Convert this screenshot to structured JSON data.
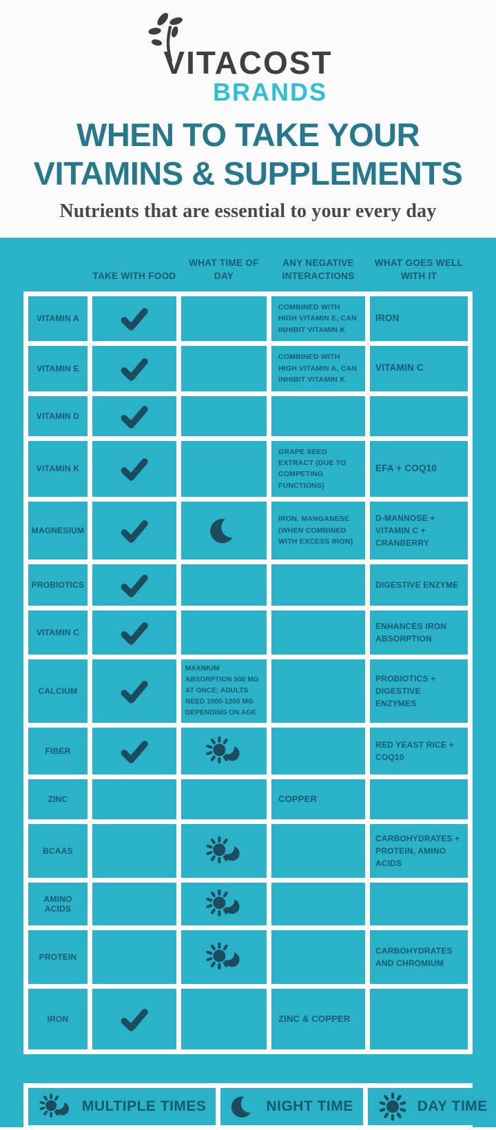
{
  "brand": {
    "name": "VITACOST",
    "subname": "BRANDS"
  },
  "header": {
    "title_line1": "WHEN TO TAKE YOUR",
    "title_line2": "VITAMINS & SUPPLEMENTS",
    "subtitle": "Nutrients that are essential to your every day"
  },
  "colors": {
    "cyan_background": "#2ab3c8",
    "grid_white": "#ffffff",
    "dark_teal_text": "#155a70",
    "icon_teal": "#1d4c5f",
    "title_teal": "#26798d",
    "brand_cyan": "#2cc0d5",
    "logo_gray": "#3f3f3f"
  },
  "table": {
    "column_headers": [
      "TAKE WITH FOOD",
      "WHAT TIME OF DAY",
      "ANY NEGATIVE INTERACTIONS",
      "WHAT GOES WELL WITH IT"
    ],
    "rows": [
      {
        "name": "VITAMIN A",
        "take_with_food": "check",
        "time_of_day": "",
        "time_note": "",
        "negative_interactions": "COMBINED WITH HIGH VITAMIN E, CAN INHIBIT VITAMIN K",
        "goes_well_with": "IRON"
      },
      {
        "name": "VITAMIN E",
        "take_with_food": "check",
        "time_of_day": "",
        "time_note": "",
        "negative_interactions": "COMBINED WITH HIGH VITAMIN A, CAN INHIBIT VITAMIN K",
        "goes_well_with": "VITAMIN C"
      },
      {
        "name": "VITAMIN D",
        "take_with_food": "check",
        "time_of_day": "",
        "time_note": "",
        "negative_interactions": "",
        "goes_well_with": ""
      },
      {
        "name": "VITAMIN K",
        "take_with_food": "check",
        "time_of_day": "",
        "time_note": "",
        "negative_interactions": "GRAPE SEED EXTRACT (DUE TO COMPETING FUNCTIONS)",
        "goes_well_with": "EFA + COQ10"
      },
      {
        "name": "MAGNESIUM",
        "take_with_food": "check",
        "time_of_day": "moon",
        "time_note": "",
        "negative_interactions": "IRON, MANGANESE (WHEN COMBINED WITH EXCESS IRON)",
        "goes_well_with": "D-MANNOSE + VITAMIN C + CRANBERRY"
      },
      {
        "name": "PROBIOTICS",
        "take_with_food": "check",
        "time_of_day": "",
        "time_note": "",
        "negative_interactions": "",
        "goes_well_with": "DIGESTIVE ENZYME"
      },
      {
        "name": "VITAMIN C",
        "take_with_food": "check",
        "time_of_day": "",
        "time_note": "",
        "negative_interactions": "",
        "goes_well_with": "ENHANCES IRON ABSORPTION"
      },
      {
        "name": "CALCIUM",
        "take_with_food": "check",
        "time_of_day": "",
        "time_note": "MAXIMUM ABSORPTION 500 MG AT ONCE; ADULTS NEED 1000-1200 MG DEPENDING ON AGE",
        "negative_interactions": "",
        "goes_well_with": "PROBIOTICS + DIGESTIVE ENZYMES"
      },
      {
        "name": "FIBER",
        "take_with_food": "check",
        "time_of_day": "sun-moon",
        "time_note": "",
        "negative_interactions": "",
        "goes_well_with": "RED YEAST RICE + COQ10"
      },
      {
        "name": "ZINC",
        "take_with_food": "",
        "time_of_day": "",
        "time_note": "",
        "negative_interactions": "COPPER",
        "goes_well_with": ""
      },
      {
        "name": "BCAAS",
        "take_with_food": "",
        "time_of_day": "sun-moon",
        "time_note": "",
        "negative_interactions": "",
        "goes_well_with": "CARBOHYDRATES + PROTEIN, AMINO ACIDS"
      },
      {
        "name": "AMINO ACIDS",
        "take_with_food": "",
        "time_of_day": "sun-moon",
        "time_note": "",
        "negative_interactions": "",
        "goes_well_with": ""
      },
      {
        "name": "PROTEIN",
        "take_with_food": "",
        "time_of_day": "sun-moon",
        "time_note": "",
        "negative_interactions": "",
        "goes_well_with": "CARBOHYDRATES AND CHROMIUM"
      },
      {
        "name": "IRON",
        "take_with_food": "check",
        "time_of_day": "",
        "time_note": "",
        "negative_interactions": "ZINC & COPPER",
        "goes_well_with": ""
      }
    ]
  },
  "legend": [
    {
      "icon": "sun-moon",
      "label": "MULTIPLE TIMES"
    },
    {
      "icon": "moon",
      "label": "NIGHT TIME"
    },
    {
      "icon": "sun",
      "label": "DAY TIME"
    }
  ]
}
